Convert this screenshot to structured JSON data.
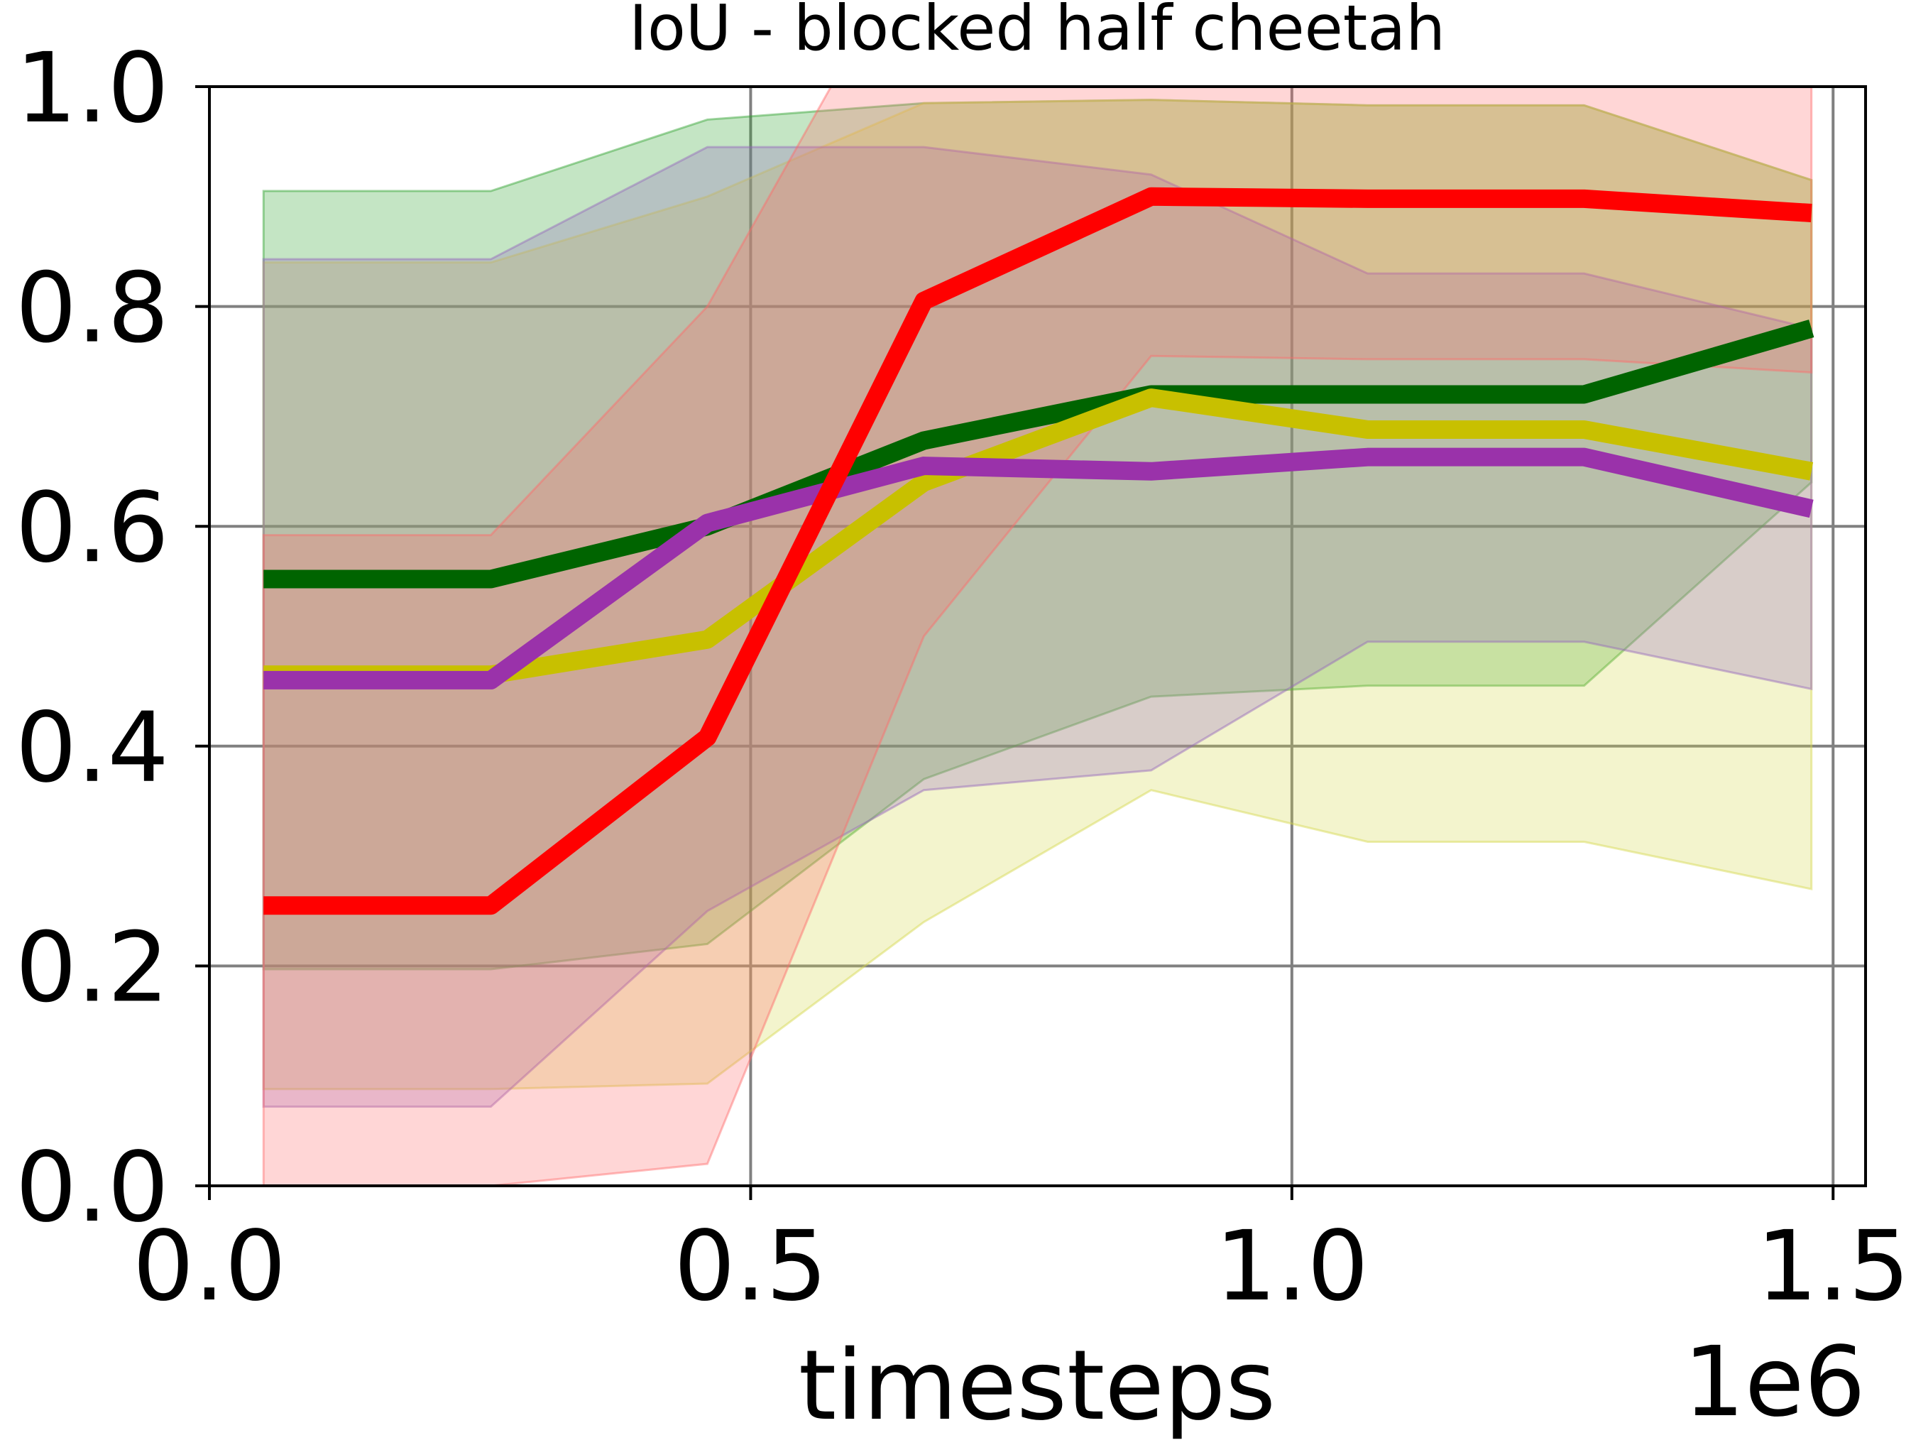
{
  "chart_data": {
    "type": "line",
    "title": "IoU - blocked half cheetah",
    "xlabel": "timesteps",
    "ylabel": "",
    "x_offset_label": "1e6",
    "xlim": [
      0.0,
      1.53
    ],
    "ylim": [
      0.0,
      1.0
    ],
    "xticks": [
      0.0,
      0.5,
      1.0,
      1.5
    ],
    "xtick_labels": [
      "0.0",
      "0.5",
      "1.0",
      "1.5"
    ],
    "yticks": [
      0.0,
      0.2,
      0.4,
      0.6,
      0.8,
      1.0
    ],
    "ytick_labels": [
      "0.0",
      "0.2",
      "0.4",
      "0.6",
      "0.8",
      "1.0"
    ],
    "grid": true,
    "x": [
      0.05,
      0.26,
      0.46,
      0.66,
      0.87,
      1.07,
      1.27,
      1.48
    ],
    "series": [
      {
        "color": "#006400",
        "band_color": "#2ca02c",
        "values": [
          0.552,
          0.552,
          0.6,
          0.678,
          0.72,
          0.72,
          0.72,
          0.78
        ],
        "upper": [
          0.905,
          0.905,
          0.97,
          0.985,
          0.988,
          0.983,
          0.983,
          0.915
        ],
        "lower": [
          0.197,
          0.197,
          0.22,
          0.37,
          0.445,
          0.455,
          0.455,
          0.64
        ]
      },
      {
        "color": "#c8c000",
        "band_color": "#d4d84a",
        "values": [
          0.465,
          0.465,
          0.497,
          0.64,
          0.717,
          0.688,
          0.688,
          0.65
        ],
        "upper": [
          0.84,
          0.84,
          0.9,
          0.985,
          0.988,
          0.983,
          0.983,
          0.915
        ],
        "lower": [
          0.088,
          0.088,
          0.093,
          0.24,
          0.36,
          0.313,
          0.313,
          0.27
        ]
      },
      {
        "color": "#9a32aa",
        "band_color": "#9467bd",
        "values": [
          0.46,
          0.46,
          0.603,
          0.655,
          0.65,
          0.663,
          0.663,
          0.616
        ],
        "upper": [
          0.843,
          0.843,
          0.945,
          0.945,
          0.92,
          0.83,
          0.83,
          0.78
        ],
        "lower": [
          0.072,
          0.072,
          0.25,
          0.36,
          0.378,
          0.495,
          0.495,
          0.452
        ]
      },
      {
        "color": "#ff0000",
        "band_color": "#ff6b6b",
        "values": [
          0.255,
          0.255,
          0.408,
          0.805,
          0.9,
          0.898,
          0.898,
          0.885
        ],
        "upper": [
          0.592,
          0.592,
          0.8,
          1.15,
          1.2,
          1.2,
          1.2,
          1.2
        ],
        "lower": [
          0.0,
          0.0,
          0.02,
          0.5,
          0.755,
          0.752,
          0.752,
          0.74
        ]
      }
    ]
  }
}
